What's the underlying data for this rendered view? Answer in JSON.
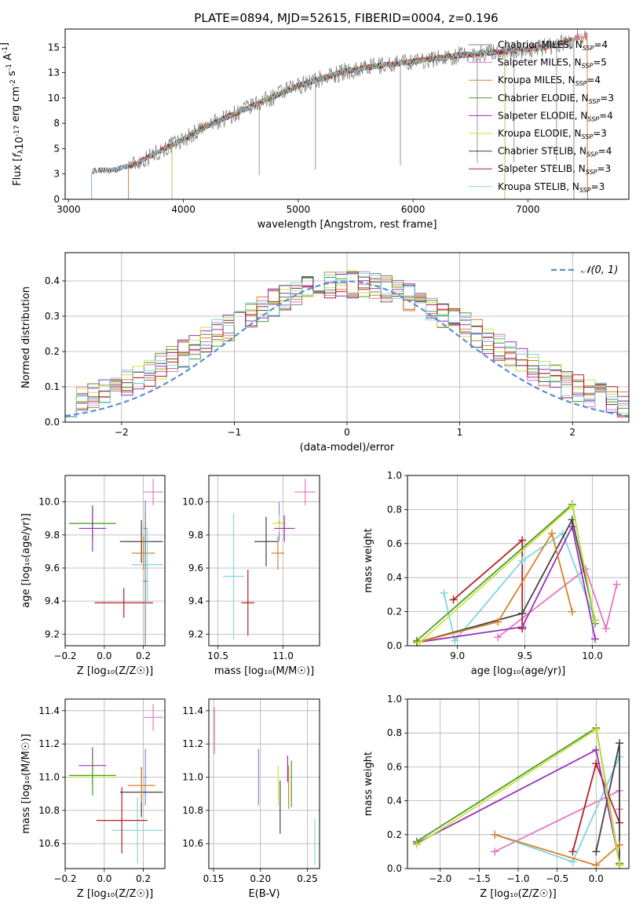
{
  "figure": {
    "title": "PLATE=0894, MJD=52615, FIBERID=0004, z=0.196"
  },
  "chart_data": [
    {
      "id": "spectrum",
      "type": "line",
      "xlabel": "wavelength [Angstrom, rest frame]",
      "ylabel_parts": [
        "Flux [",
        "f",
        "λ",
        "10",
        "-17",
        " erg cm",
        "-2",
        " s",
        "-1",
        " A",
        "-1",
        "]"
      ],
      "xlim": [
        2970,
        7880
      ],
      "ylim": [
        0,
        16.8
      ],
      "xticks": [
        3000,
        4000,
        5000,
        6000,
        7000
      ],
      "yticks": [
        0.0,
        2.5,
        5.0,
        7.5,
        10.0,
        12.5,
        15.0
      ],
      "grid": false,
      "legend_position": "top-right",
      "continuum": {
        "x": [
          3200,
          3400,
          3600,
          3800,
          4000,
          4200,
          4400,
          4600,
          4800,
          5000,
          5200,
          5400,
          5600,
          5800,
          6000,
          6200,
          6400,
          6600,
          6800,
          7000,
          7200,
          7400,
          7500
        ],
        "y": [
          2.8,
          2.9,
          3.6,
          4.8,
          5.9,
          7.2,
          8.2,
          9.2,
          10.2,
          11.2,
          11.9,
          12.6,
          13.0,
          13.3,
          13.6,
          13.9,
          14.2,
          14.4,
          14.6,
          14.8,
          15.1,
          15.8,
          16.2
        ]
      },
      "series": [
        {
          "label": "Chabrier MILES, N",
          "sub": "SSP",
          "value": "=4",
          "color": "#808080",
          "start": 3520,
          "end": 7520
        },
        {
          "label": "Salpeter MILES, N",
          "sub": "SSP",
          "value": "=5",
          "color": "#e377c2",
          "start": 3520,
          "end": 7520
        },
        {
          "label": "Kroupa MILES, N",
          "sub": "SSP",
          "value": "=4",
          "color": "#d9822b",
          "start": 3520,
          "end": 7520
        },
        {
          "label": "Chabrier ELODIE, N",
          "sub": "SSP",
          "value": "=3",
          "color": "#4c9a2a",
          "start": 3900,
          "end": 6800
        },
        {
          "label": "Salpeter ELODIE, N",
          "sub": "SSP",
          "value": "=4",
          "color": "#9b30b8",
          "start": 3900,
          "end": 6800
        },
        {
          "label": "Kroupa ELODIE, N",
          "sub": "SSP",
          "value": "=3",
          "color": "#cde342",
          "start": 3900,
          "end": 6800
        },
        {
          "label": "Chabrier STELIB, N",
          "sub": "SSP",
          "value": "=4",
          "color": "#444444",
          "start": 3200,
          "end": 7400
        },
        {
          "label": "Salpeter STELIB, N",
          "sub": "SSP",
          "value": "=3",
          "color": "#b22222",
          "start": 3200,
          "end": 7400
        },
        {
          "label": "Kroupa STELIB, N",
          "sub": "SSP",
          "value": "=3",
          "color": "#7fd5e0",
          "start": 3200,
          "end": 7400
        }
      ]
    },
    {
      "id": "residuals",
      "type": "area",
      "xlabel": "(data-model)/error",
      "ylabel": "Normed distribution",
      "xlim": [
        -2.5,
        2.5
      ],
      "ylim": [
        0,
        0.48
      ],
      "xticks": [
        -2,
        -1,
        0,
        1,
        2
      ],
      "yticks": [
        0.0,
        0.1,
        0.2,
        0.3,
        0.4
      ],
      "grid": true,
      "legend_position": "top-right",
      "legend_label": "𝒩(0, 1)",
      "gaussian_color": "#5b8ed6",
      "bin_width": 0.1,
      "bin_start": -2.5
    },
    {
      "id": "age-vs-Z",
      "type": "scatter",
      "xlabel": "Z [log₁₀(Z/Z☉)]",
      "ylabel": "age  [log₁₀(age/yr)]",
      "xlim": [
        -0.2,
        0.31
      ],
      "ylim": [
        9.13,
        10.16
      ],
      "xticks": [
        -0.2,
        0.0,
        0.2
      ],
      "yticks": [
        9.2,
        9.4,
        9.6,
        9.8,
        10.0
      ],
      "grid": true,
      "points": [
        {
          "color": "#e377c2",
          "x": 0.25,
          "xerr": 0.05,
          "y": 10.06,
          "yerr": 0.08
        },
        {
          "color": "#cde342",
          "x": -0.06,
          "xerr": 0.12,
          "y": 9.87,
          "yerr": 0.05
        },
        {
          "color": "#4c9a2a",
          "x": -0.06,
          "xerr": 0.12,
          "y": 9.87,
          "yerr": 0.1
        },
        {
          "color": "#9b30b8",
          "x": -0.06,
          "xerr": 0.07,
          "y": 9.84,
          "yerr": 0.14
        },
        {
          "color": "#7b8fd4",
          "x": 0.21,
          "xerr": 0.01,
          "y": 9.84,
          "yerr": 0.17
        },
        {
          "color": "#444444",
          "x": 0.19,
          "xerr": 0.11,
          "y": 9.76,
          "yerr": 0.13
        },
        {
          "color": "#d9822b",
          "x": 0.2,
          "xerr": 0.06,
          "y": 9.69,
          "yerr": 0.1
        },
        {
          "color": "#7fd5e0",
          "x": 0.22,
          "xerr": 0.08,
          "y": 9.62,
          "yerr": 0.22
        },
        {
          "color": "#b22222",
          "x": 0.1,
          "xerr": 0.15,
          "y": 9.39,
          "yerr": 0.09
        },
        {
          "color": "#808080",
          "x": 0.21,
          "xerr": 0.01,
          "y": 9.52,
          "yerr": 0.42
        }
      ]
    },
    {
      "id": "age-vs-mass",
      "type": "scatter",
      "xlabel": "mass [log₁₀(M/M☉)]",
      "ylabel": "",
      "xlim": [
        10.43,
        11.28
      ],
      "ylim": [
        9.13,
        10.16
      ],
      "xticks": [
        10.5,
        11.0
      ],
      "yticks": [
        9.2,
        9.4,
        9.6,
        9.8,
        10.0
      ],
      "grid": true,
      "points": [
        {
          "color": "#e377c2",
          "x": 11.17,
          "xerr": 0.08,
          "y": 10.06,
          "yerr": 0.08
        },
        {
          "color": "#7b8fd4",
          "x": 10.97,
          "xerr": 0.01,
          "y": 9.88,
          "yerr": 0.12
        },
        {
          "color": "#cde342",
          "x": 10.97,
          "xerr": 0.05,
          "y": 9.87,
          "yerr": 0.05
        },
        {
          "color": "#9b30b8",
          "x": 11.01,
          "xerr": 0.08,
          "y": 9.84,
          "yerr": 0.08
        },
        {
          "color": "#444444",
          "x": 10.87,
          "xerr": 0.09,
          "y": 9.76,
          "yerr": 0.15
        },
        {
          "color": "#d9822b",
          "x": 10.96,
          "xerr": 0.05,
          "y": 9.69,
          "yerr": 0.1
        },
        {
          "color": "#7fd5e0",
          "x": 10.62,
          "xerr": 0.08,
          "y": 9.55,
          "yerr": 0.38
        },
        {
          "color": "#b22222",
          "x": 10.73,
          "xerr": 0.05,
          "y": 9.39,
          "yerr": 0.2
        }
      ]
    },
    {
      "id": "massweight-vs-age",
      "type": "line",
      "xlabel": "age  [log₁₀(age/yr)]",
      "ylabel": "mass weight",
      "xlim": [
        8.63,
        10.27
      ],
      "ylim": [
        0,
        1
      ],
      "xticks": [
        9.0,
        9.5,
        10.0
      ],
      "yticks": [
        0.0,
        0.2,
        0.4,
        0.6,
        0.8,
        1.0
      ],
      "grid": true,
      "series": [
        {
          "color": "#e377c2",
          "x": [
            9.3,
            9.95,
            10.1,
            10.18
          ],
          "y": [
            0.05,
            0.45,
            0.1,
            0.36
          ]
        },
        {
          "color": "#b22222",
          "x": [
            8.97,
            9.48,
            9.48
          ],
          "y": [
            0.27,
            0.62,
            0.1
          ]
        },
        {
          "color": "#7fd5e0",
          "x": [
            8.9,
            8.98,
            9.48,
            9.78,
            10.02
          ],
          "y": [
            0.31,
            0.03,
            0.5,
            0.66,
            0.15
          ]
        },
        {
          "color": "#9b30b8",
          "x": [
            8.7,
            9.48,
            9.85,
            10.02
          ],
          "y": [
            0.02,
            0.11,
            0.7,
            0.04
          ]
        },
        {
          "color": "#444444",
          "x": [
            8.7,
            9.48,
            9.85,
            10.02
          ],
          "y": [
            0.02,
            0.19,
            0.74,
            0.15
          ]
        },
        {
          "color": "#d9822b",
          "x": [
            8.7,
            9.3,
            9.7,
            9.85
          ],
          "y": [
            0.02,
            0.14,
            0.66,
            0.2
          ]
        },
        {
          "color": "#4c9a2a",
          "x": [
            8.7,
            9.85,
            10.02
          ],
          "y": [
            0.03,
            0.83,
            0.13
          ]
        },
        {
          "color": "#cde342",
          "x": [
            8.72,
            9.85,
            10.02
          ],
          "y": [
            0.02,
            0.82,
            0.15
          ]
        }
      ]
    },
    {
      "id": "mass-vs-Z",
      "type": "scatter",
      "xlabel": "Z [log₁₀(Z/Z☉)]",
      "ylabel": "mass [log₁₀(M/M☉)]",
      "xlim": [
        -0.2,
        0.31
      ],
      "ylim": [
        10.45,
        11.47
      ],
      "xticks": [
        -0.2,
        0.0,
        0.2
      ],
      "yticks": [
        10.6,
        10.8,
        11.0,
        11.2,
        11.4
      ],
      "grid": true,
      "points": [
        {
          "color": "#e377c2",
          "x": 0.25,
          "xerr": 0.05,
          "y": 11.36,
          "yerr": 0.08
        },
        {
          "color": "#9b30b8",
          "x": -0.06,
          "xerr": 0.07,
          "y": 11.07,
          "yerr": 0.11
        },
        {
          "color": "#cde342",
          "x": -0.06,
          "xerr": 0.12,
          "y": 11.0,
          "yerr": 0.08
        },
        {
          "color": "#4c9a2a",
          "x": -0.06,
          "xerr": 0.12,
          "y": 11.01,
          "yerr": 0.12
        },
        {
          "color": "#7b8fd4",
          "x": 0.21,
          "xerr": 0.01,
          "y": 11.0,
          "yerr": 0.17
        },
        {
          "color": "#444444",
          "x": 0.19,
          "xerr": 0.11,
          "y": 10.91,
          "yerr": 0.15
        },
        {
          "color": "#d9822b",
          "x": 0.19,
          "xerr": 0.07,
          "y": 10.95,
          "yerr": 0.1
        },
        {
          "color": "#7fd5e0",
          "x": 0.17,
          "xerr": 0.13,
          "y": 10.68,
          "yerr": 0.2
        },
        {
          "color": "#b22222",
          "x": 0.09,
          "xerr": 0.13,
          "y": 10.74,
          "yerr": 0.2
        }
      ]
    },
    {
      "id": "mass-vs-ebv",
      "type": "scatter",
      "xlabel": "E(B-V)",
      "ylabel": "",
      "xlim": [
        0.145,
        0.263
      ],
      "ylim": [
        10.45,
        11.47
      ],
      "xticks": [
        0.15,
        0.2,
        0.25
      ],
      "yticks": [
        10.6,
        10.8,
        11.0,
        11.2,
        11.4
      ],
      "grid": true,
      "points": [
        {
          "color": "#e377c2",
          "x": 0.151,
          "y": 11.28,
          "yerr": 0.14
        },
        {
          "color": "#7b8fd4",
          "x": 0.198,
          "y": 11.0,
          "yerr": 0.17
        },
        {
          "color": "#cde342",
          "x": 0.219,
          "y": 10.95,
          "yerr": 0.12
        },
        {
          "color": "#444444",
          "x": 0.221,
          "y": 10.82,
          "yerr": 0.16
        },
        {
          "color": "#9b30b8",
          "x": 0.229,
          "y": 11.05,
          "yerr": 0.08
        },
        {
          "color": "#d9822b",
          "x": 0.23,
          "y": 10.94,
          "yerr": 0.13
        },
        {
          "color": "#4c9a2a",
          "x": 0.233,
          "y": 10.96,
          "yerr": 0.14
        },
        {
          "color": "#7fd5e0",
          "x": 0.258,
          "y": 10.61,
          "yerr": 0.14
        }
      ]
    },
    {
      "id": "massweight-vs-Z",
      "type": "line",
      "xlabel": "Z [log₁₀(Z/Z☉)]",
      "ylabel": "mass weight",
      "xlim": [
        -2.42,
        0.42
      ],
      "ylim": [
        0,
        1
      ],
      "xticks": [
        -2.0,
        -1.5,
        -1.0,
        -0.5,
        0.0
      ],
      "yticks": [
        0.0,
        0.2,
        0.4,
        0.6,
        0.8,
        1.0
      ],
      "grid": true,
      "series": [
        {
          "color": "#e377c2",
          "x": [
            -1.3,
            0.3,
            0.3
          ],
          "y": [
            0.1,
            0.46,
            0.35
          ]
        },
        {
          "color": "#b22222",
          "x": [
            -0.3,
            0.0,
            0.3
          ],
          "y": [
            0.1,
            0.62,
            0.27
          ]
        },
        {
          "color": "#7fd5e0",
          "x": [
            -1.3,
            -0.3,
            0.3
          ],
          "y": [
            0.2,
            0.04,
            0.66
          ]
        },
        {
          "color": "#9b30b8",
          "x": [
            -2.3,
            0.0,
            0.3
          ],
          "y": [
            0.15,
            0.7,
            0.03
          ]
        },
        {
          "color": "#444444",
          "x": [
            0.0,
            0.3,
            0.3
          ],
          "y": [
            0.1,
            0.74,
            0.02
          ]
        },
        {
          "color": "#d9822b",
          "x": [
            -1.3,
            0.0,
            0.3
          ],
          "y": [
            0.2,
            0.02,
            0.14
          ]
        },
        {
          "color": "#4c9a2a",
          "x": [
            -2.3,
            0.0,
            0.3
          ],
          "y": [
            0.16,
            0.83,
            0.03
          ]
        },
        {
          "color": "#cde342",
          "x": [
            -2.3,
            0.0,
            0.3
          ],
          "y": [
            0.14,
            0.82,
            0.02
          ]
        }
      ]
    }
  ]
}
